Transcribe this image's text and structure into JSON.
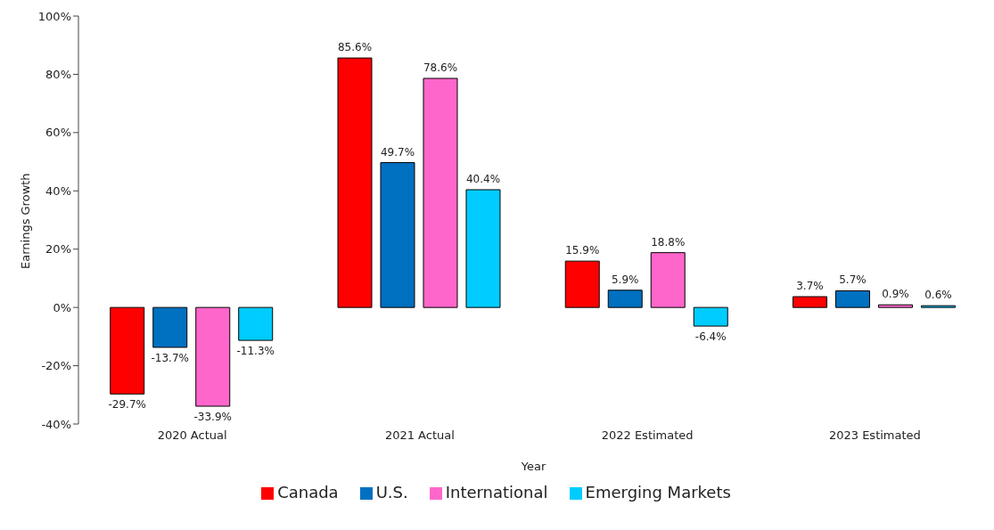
{
  "chart_data": {
    "type": "bar",
    "xlabel": "Year",
    "ylabel": "Earnings Growth",
    "categories": [
      "2020 Actual",
      "2021 Actual",
      "2022 Estimated",
      "2023 Estimated"
    ],
    "series": [
      {
        "name": "Canada",
        "color": "#ff0000",
        "values": [
          -29.7,
          85.6,
          15.9,
          3.7
        ],
        "value_labels": [
          "-29.7%",
          "85.6%",
          "15.9%",
          "3.7%"
        ]
      },
      {
        "name": "U.S.",
        "color": "#0070c0",
        "values": [
          -13.7,
          49.7,
          5.9,
          5.7
        ],
        "value_labels": [
          "-13.7%",
          "49.7%",
          "5.9%",
          "5.7%"
        ]
      },
      {
        "name": "International",
        "color": "#ff66cc",
        "values": [
          -33.9,
          78.6,
          18.8,
          0.9
        ],
        "value_labels": [
          "-33.9%",
          "78.6%",
          "18.8%",
          "0.9%"
        ]
      },
      {
        "name": "Emerging Markets",
        "color": "#00ccff",
        "values": [
          -11.3,
          40.4,
          -6.4,
          0.6
        ],
        "value_labels": [
          "-11.3%",
          "40.4%",
          "-6.4%",
          "0.6%"
        ]
      }
    ],
    "ylim": [
      -40,
      100
    ],
    "yticks": [
      {
        "value": -40,
        "label": "-40%"
      },
      {
        "value": -20,
        "label": "-20%"
      },
      {
        "value": 0,
        "label": "0%"
      },
      {
        "value": 20,
        "label": "20%"
      },
      {
        "value": 40,
        "label": "40%"
      },
      {
        "value": 60,
        "label": "60%"
      },
      {
        "value": 80,
        "label": "80%"
      },
      {
        "value": 100,
        "label": "100%"
      }
    ],
    "grid": false,
    "legend": "bottom"
  }
}
